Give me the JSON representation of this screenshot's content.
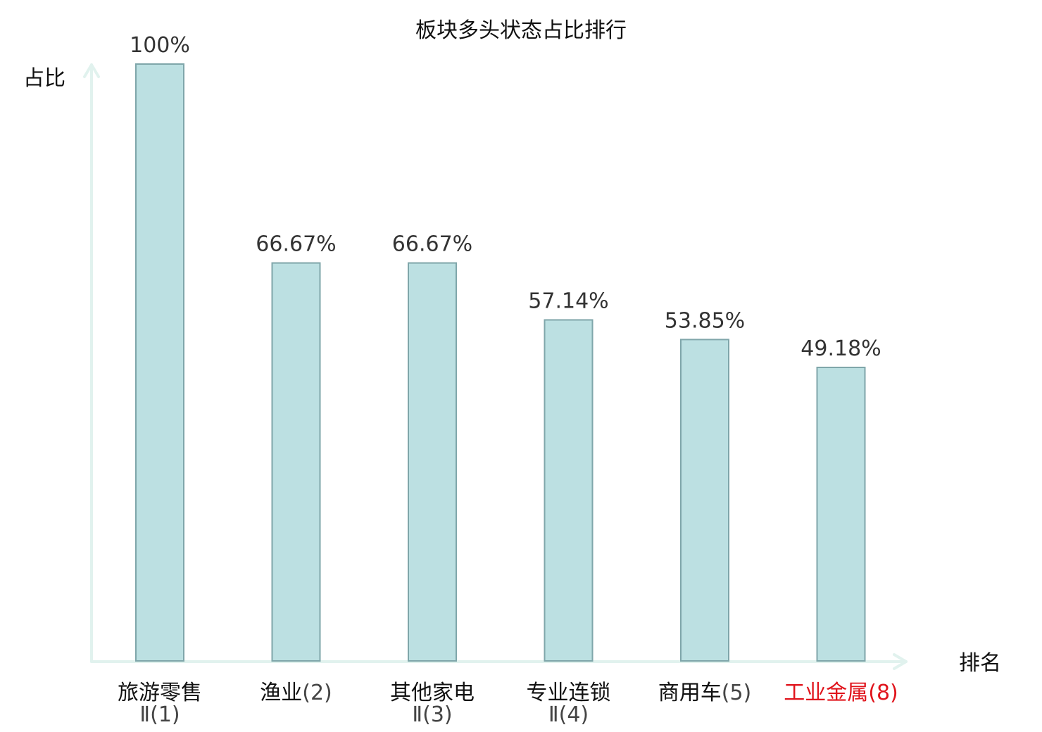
{
  "chart_data": {
    "type": "bar",
    "title": "板块多头状态占比排行",
    "ylabel": "占比",
    "xlabel": "排名",
    "ylim": [
      0,
      100
    ],
    "categories": [
      {
        "name": "旅游零售",
        "suffix": "Ⅱ",
        "rank": "(1)",
        "highlight": false
      },
      {
        "name": "渔业",
        "suffix": "",
        "rank": "(2)",
        "highlight": false
      },
      {
        "name": "其他家电",
        "suffix": "Ⅱ",
        "rank": "(3)",
        "highlight": false
      },
      {
        "name": "专业连锁",
        "suffix": "Ⅱ",
        "rank": "(4)",
        "highlight": false
      },
      {
        "name": "商用车",
        "suffix": "",
        "rank": "(5)",
        "highlight": false
      },
      {
        "name": "工业金属",
        "suffix": "",
        "rank": "(8)",
        "highlight": true
      }
    ],
    "values": [
      100,
      66.67,
      66.67,
      57.14,
      53.85,
      49.18
    ],
    "value_labels": [
      "100%",
      "66.67%",
      "66.67%",
      "57.14%",
      "53.85%",
      "49.18%"
    ],
    "grid": false,
    "legend": "none"
  },
  "colors": {
    "bar_fill": "#bce0e2",
    "bar_stroke": "#7fa6aa",
    "axis": "#e1f2ee",
    "label_text": "#111111",
    "rank_text": "#444444",
    "highlight": "#e0141c",
    "value_text": "#333333"
  }
}
